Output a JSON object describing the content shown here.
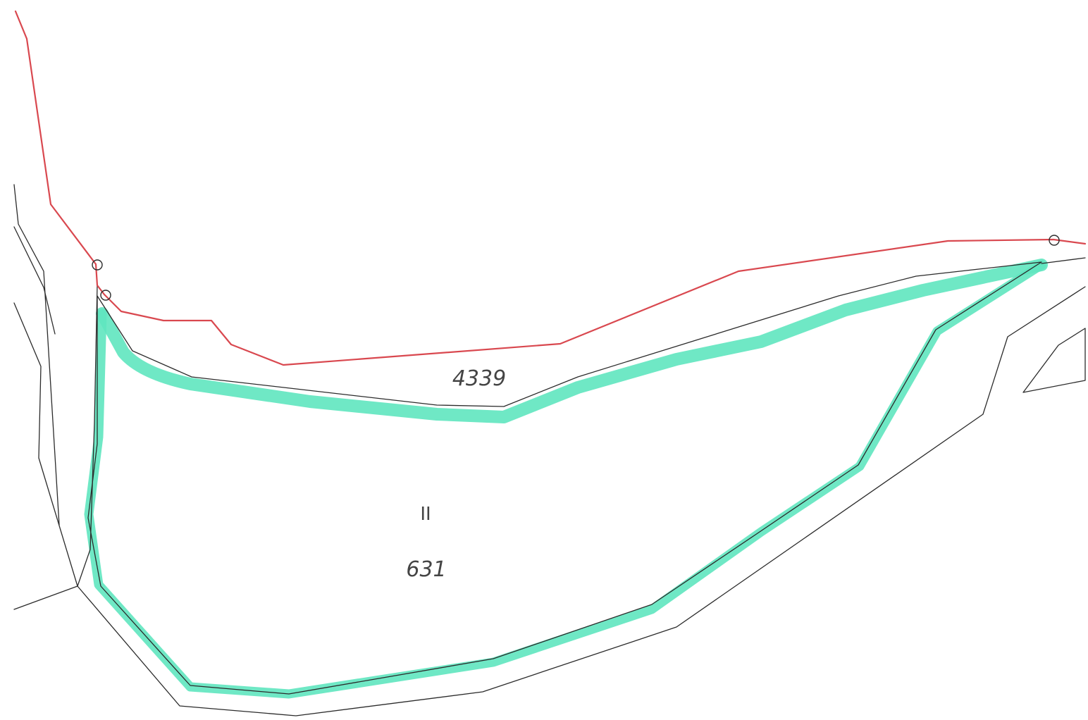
{
  "map": {
    "labels": {
      "parcel_upper": "4339",
      "parcel_main": "631",
      "parcel_class": "II"
    },
    "colors": {
      "background": "#ffffff",
      "parcel_line": "#2b2b2b",
      "boundary": "#d9484f",
      "highlight": "#5fe6bf",
      "label": "#444444"
    }
  }
}
